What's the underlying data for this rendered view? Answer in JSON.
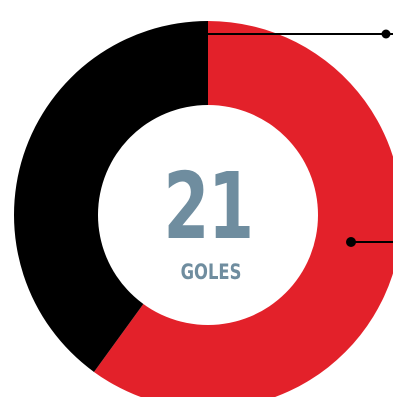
{
  "chart_data": {
    "type": "pie",
    "style": "donut",
    "slices": [
      {
        "value": 60,
        "color": "#e3212a"
      },
      {
        "value": 40,
        "color": "#000000"
      }
    ],
    "center_value": "21",
    "center_label": "GOLES",
    "center_text_color": "#6f8d9f",
    "leader_line_color": "#000000"
  }
}
